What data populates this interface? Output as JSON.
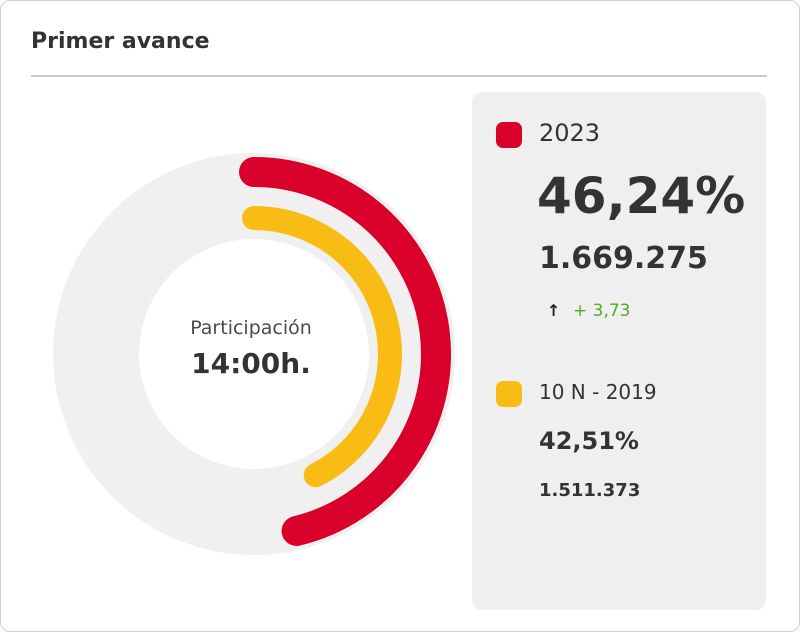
{
  "card": {
    "title": "Primer avance"
  },
  "center": {
    "label": "Participación",
    "time": "14:00h."
  },
  "legend": {
    "current": {
      "label": "2023",
      "percent": "46,24%",
      "count": "1.669.275",
      "change_arrow": "↑",
      "change": "+ 3,73"
    },
    "previous": {
      "label": "10 N - 2019",
      "percent": "42,51%",
      "count": "1.511.373"
    }
  },
  "colors": {
    "series_2023": "#d9002c",
    "series_2019": "#f9bc14",
    "track": "#f0f0f0",
    "change_positive": "#4caf1a"
  },
  "chart_data": {
    "type": "radial-bar",
    "unit": "%",
    "max": 100,
    "series": [
      {
        "name": "2023",
        "value": 46.24,
        "color": "#d9002c"
      },
      {
        "name": "10 N - 2019",
        "value": 42.51,
        "color": "#f9bc14"
      }
    ]
  }
}
